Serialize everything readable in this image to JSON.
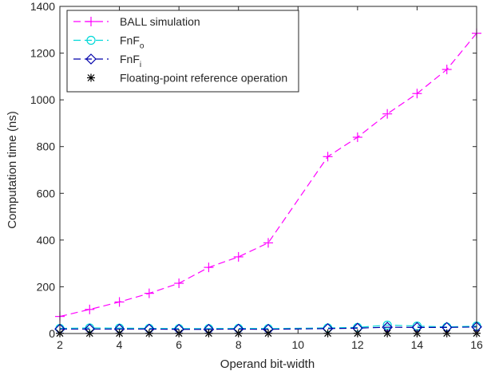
{
  "chart_data": {
    "type": "line",
    "title": "",
    "xlabel": "Operand bit-width",
    "ylabel": "Computation time (ns)",
    "xlim": [
      2,
      16
    ],
    "ylim": [
      0,
      1400
    ],
    "xticks": [
      2,
      4,
      6,
      8,
      10,
      12,
      14,
      16
    ],
    "yticks": [
      0,
      200,
      400,
      600,
      800,
      1000,
      1200,
      1400
    ],
    "grid": false,
    "legend_position": "top-left",
    "series": [
      {
        "name": "BALL simulation",
        "color": "#ff00ff",
        "line": "dashed",
        "marker": "plus",
        "x": [
          2,
          3,
          4,
          5,
          6,
          7,
          8,
          9,
          11,
          12,
          13,
          14,
          15,
          16
        ],
        "y": [
          73,
          103,
          135,
          172,
          215,
          283,
          328,
          388,
          757,
          840,
          940,
          1027,
          1130,
          1285
        ]
      },
      {
        "name": "FnF",
        "subscript": "o",
        "color": "#00d8d8",
        "line": "dashed",
        "marker": "circle",
        "x": [
          2,
          3,
          4,
          5,
          6,
          7,
          8,
          9,
          11,
          12,
          13,
          14,
          15,
          16
        ],
        "y": [
          22,
          24,
          23,
          22,
          21,
          21,
          22,
          21,
          24,
          26,
          36,
          32,
          28,
          32
        ]
      },
      {
        "name": "FnF",
        "subscript": "i",
        "color": "#0000aa",
        "line": "dashed",
        "marker": "diamond",
        "x": [
          2,
          3,
          4,
          5,
          6,
          7,
          8,
          9,
          11,
          12,
          13,
          14,
          15,
          16
        ],
        "y": [
          19,
          19,
          19,
          19,
          18,
          18,
          19,
          18,
          21,
          23,
          27,
          26,
          26,
          28
        ]
      },
      {
        "name": "Floating-point reference operation",
        "color": "#000000",
        "line": "none",
        "marker": "asterisk",
        "x": [
          2,
          3,
          4,
          5,
          6,
          7,
          8,
          9,
          11,
          12,
          13,
          14,
          15,
          16
        ],
        "y": [
          1,
          1,
          1,
          1,
          1,
          1,
          1,
          1,
          1,
          1,
          1,
          1,
          1,
          1
        ]
      }
    ]
  }
}
